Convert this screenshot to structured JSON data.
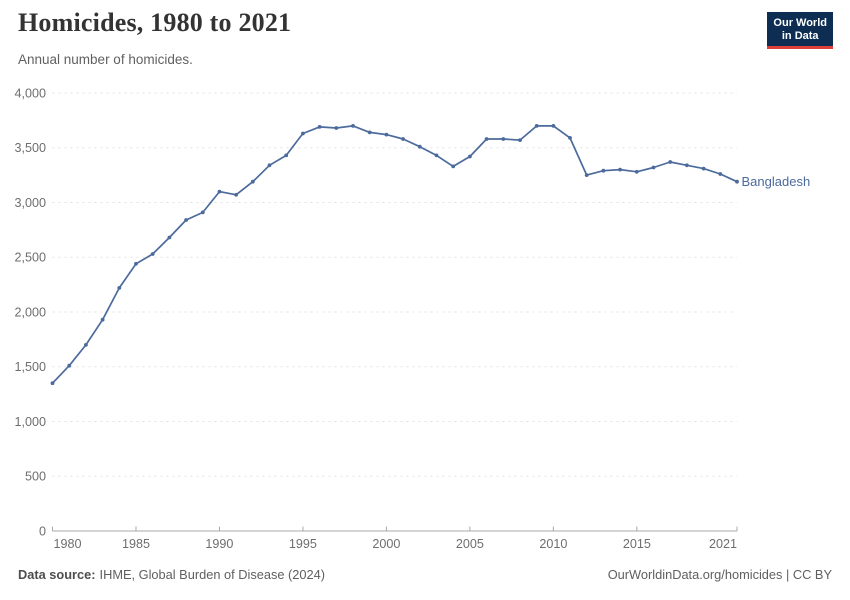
{
  "header": {
    "title": "Homicides, 1980 to 2021",
    "subtitle": "Annual number of homicides.",
    "logo": {
      "line1": "Our World",
      "line2": "in Data"
    }
  },
  "chart_data": {
    "type": "line",
    "title": "Homicides, 1980 to 2021",
    "subtitle": "Annual number of homicides.",
    "xlabel": "",
    "ylabel": "",
    "xlim": [
      1980,
      2021
    ],
    "ylim": [
      0,
      4000
    ],
    "x_ticks": [
      1980,
      1985,
      1990,
      1995,
      2000,
      2005,
      2010,
      2015,
      2021
    ],
    "y_ticks": [
      0,
      500,
      1000,
      1500,
      2000,
      2500,
      3000,
      3500,
      4000
    ],
    "grid": "horizontal-dashed",
    "legend_position": "end-of-line-label",
    "series": [
      {
        "name": "Bangladesh",
        "color": "#4C6A9C",
        "x": [
          1980,
          1981,
          1982,
          1983,
          1984,
          1985,
          1986,
          1987,
          1988,
          1989,
          1990,
          1991,
          1992,
          1993,
          1994,
          1995,
          1996,
          1997,
          1998,
          1999,
          2000,
          2001,
          2002,
          2003,
          2004,
          2005,
          2006,
          2007,
          2008,
          2009,
          2010,
          2011,
          2012,
          2013,
          2014,
          2015,
          2016,
          2017,
          2018,
          2019,
          2020,
          2021
        ],
        "values": [
          1350,
          1510,
          1700,
          1930,
          2220,
          2440,
          2530,
          2680,
          2840,
          2910,
          3100,
          3070,
          3190,
          3340,
          3430,
          3630,
          3690,
          3680,
          3700,
          3640,
          3620,
          3580,
          3510,
          3430,
          3330,
          3420,
          3580,
          3580,
          3570,
          3700,
          3700,
          3590,
          3250,
          3290,
          3300,
          3280,
          3320,
          3370,
          3340,
          3310,
          3260,
          3190
        ]
      }
    ]
  },
  "footer": {
    "source_label": "Data source:",
    "source_text": "IHME, Global Burden of Disease (2024)",
    "right_text": "OurWorldinData.org/homicides | CC BY"
  },
  "colors": {
    "line": "#4C6A9C",
    "logo_bg": "#0D2E52",
    "logo_accent": "#E0403A",
    "grid": "#E2E2E2",
    "axis": "#A8A8A8",
    "tick_text": "#6E6E6E",
    "title_text": "#333333",
    "subtitle_text": "#616161",
    "footer_text": "#5F5F5F"
  }
}
